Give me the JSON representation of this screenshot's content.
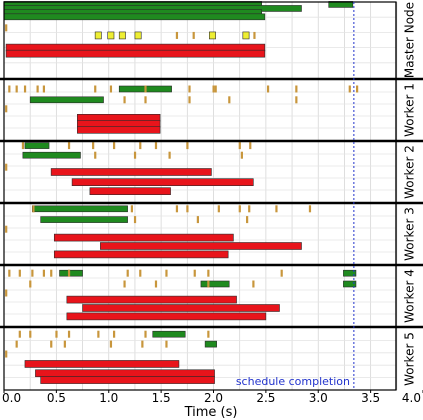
{
  "chart_data": {
    "type": "gantt",
    "title": "",
    "xlabel": "Time (s)",
    "x_ticks": [
      "0.0",
      "0.5",
      "1.0",
      "1.5",
      "2.0",
      "2.5",
      "3.0",
      "3.5",
      "4.0"
    ],
    "xlim": [
      0,
      4.0
    ],
    "grid": true,
    "annotation": {
      "label": "schedule completion",
      "x": 3.34
    },
    "colors": {
      "green": "#1f8a1f",
      "red": "#e8141b",
      "yellow": "#eeee33",
      "tick": "#c8963c",
      "annotation": "#2233cc"
    },
    "rows": [
      {
        "label": "Master Node",
        "green": [
          [
            0.0,
            2.46,
            0.032
          ],
          [
            0.0,
            2.84,
            0.085
          ],
          [
            0.0,
            2.46,
            0.14
          ],
          [
            0.0,
            2.49,
            0.195
          ],
          [
            3.1,
            3.33,
            0.032
          ]
        ],
        "yellow": [
          [
            0.87,
            0.93,
            0.44
          ],
          [
            0.99,
            1.05,
            0.44
          ],
          [
            1.1,
            1.16,
            0.44
          ],
          [
            1.25,
            1.31,
            0.44
          ],
          [
            1.96,
            2.02,
            0.44
          ],
          [
            2.28,
            2.34,
            0.44
          ]
        ],
        "red": [
          [
            0.02,
            2.49,
            0.6
          ],
          [
            0.02,
            2.49,
            0.68
          ]
        ],
        "ticks": [
          [
            0.02,
            0.34
          ],
          [
            1.65,
            0.44
          ],
          [
            1.81,
            0.44
          ],
          [
            2.39,
            0.44
          ]
        ]
      },
      {
        "label": "Worker 1",
        "green": [
          [
            0.25,
            0.95,
            0.33
          ],
          [
            1.1,
            1.6,
            0.15
          ]
        ],
        "red": [
          [
            0.7,
            1.49,
            0.63
          ],
          [
            0.7,
            1.49,
            0.73
          ],
          [
            0.7,
            1.49,
            0.83
          ]
        ],
        "ticks": [
          [
            0.05,
            0.15
          ],
          [
            0.12,
            0.15
          ],
          [
            0.2,
            0.15
          ],
          [
            0.32,
            0.15
          ],
          [
            0.38,
            0.15
          ],
          [
            0.87,
            0.15
          ],
          [
            1.02,
            0.15
          ],
          [
            1.35,
            0.15
          ],
          [
            1.77,
            0.15
          ],
          [
            2.0,
            0.15
          ],
          [
            2.02,
            0.15
          ],
          [
            2.52,
            0.15
          ],
          [
            2.79,
            0.15
          ],
          [
            3.3,
            0.15
          ],
          [
            3.37,
            0.15
          ],
          [
            1.15,
            0.33
          ],
          [
            1.35,
            0.33
          ],
          [
            1.77,
            0.33
          ],
          [
            2.15,
            0.33
          ],
          [
            2.79,
            0.33
          ],
          [
            0.02,
            0.48
          ]
        ]
      },
      {
        "label": "Worker 2",
        "green": [
          [
            0.2,
            0.43,
            0.06
          ],
          [
            0.18,
            0.73,
            0.22
          ]
        ],
        "red": [
          [
            0.45,
            1.98,
            0.5
          ],
          [
            0.65,
            2.38,
            0.67
          ],
          [
            0.82,
            1.59,
            0.82
          ]
        ],
        "ticks": [
          [
            0.18,
            0.06
          ],
          [
            0.62,
            0.06
          ],
          [
            0.85,
            0.06
          ],
          [
            1.05,
            0.06
          ],
          [
            1.3,
            0.06
          ],
          [
            1.45,
            0.06
          ],
          [
            1.75,
            0.06
          ],
          [
            2.25,
            0.06
          ],
          [
            2.35,
            0.06
          ],
          [
            0.87,
            0.22
          ],
          [
            1.25,
            0.22
          ],
          [
            1.58,
            0.22
          ],
          [
            2.27,
            0.22
          ],
          [
            0.02,
            0.42
          ]
        ]
      },
      {
        "label": "Worker 3",
        "green": [
          [
            0.27,
            1.18,
            0.08
          ],
          [
            0.35,
            1.18,
            0.26
          ]
        ],
        "red": [
          [
            0.48,
            2.19,
            0.56
          ],
          [
            0.92,
            2.84,
            0.7
          ],
          [
            0.48,
            2.14,
            0.84
          ]
        ],
        "ticks": [
          [
            0.28,
            0.08
          ],
          [
            1.22,
            0.08
          ],
          [
            1.65,
            0.08
          ],
          [
            1.75,
            0.08
          ],
          [
            2.05,
            0.08
          ],
          [
            2.25,
            0.08
          ],
          [
            2.34,
            0.08
          ],
          [
            2.6,
            0.08
          ],
          [
            2.92,
            0.08
          ],
          [
            1.25,
            0.26
          ],
          [
            1.85,
            0.26
          ],
          [
            2.32,
            0.26
          ],
          [
            0.02,
            0.42
          ]
        ]
      },
      {
        "label": "Worker 4",
        "green": [
          [
            0.53,
            0.75,
            0.12
          ],
          [
            1.88,
            2.15,
            0.3
          ],
          [
            3.24,
            3.36,
            0.12
          ],
          [
            3.24,
            3.36,
            0.3
          ]
        ],
        "red": [
          [
            0.6,
            2.22,
            0.56
          ],
          [
            0.75,
            2.63,
            0.7
          ],
          [
            0.6,
            2.5,
            0.84
          ]
        ],
        "ticks": [
          [
            0.05,
            0.12
          ],
          [
            0.15,
            0.12
          ],
          [
            0.27,
            0.12
          ],
          [
            0.38,
            0.12
          ],
          [
            0.45,
            0.12
          ],
          [
            0.62,
            0.12
          ],
          [
            1.18,
            0.12
          ],
          [
            1.3,
            0.12
          ],
          [
            1.55,
            0.12
          ],
          [
            1.82,
            0.12
          ],
          [
            1.95,
            0.12
          ],
          [
            2.65,
            0.12
          ],
          [
            0.25,
            0.3
          ],
          [
            1.15,
            0.3
          ],
          [
            1.45,
            0.3
          ],
          [
            1.95,
            0.3
          ],
          [
            2.38,
            0.3
          ],
          [
            0.02,
            0.45
          ]
        ]
      },
      {
        "label": "Worker 5",
        "green": [
          [
            1.42,
            1.73,
            0.1
          ],
          [
            1.92,
            2.03,
            0.26
          ]
        ],
        "red": [
          [
            0.2,
            1.67,
            0.58
          ],
          [
            0.3,
            2.01,
            0.73
          ],
          [
            0.35,
            2.01,
            0.84
          ]
        ],
        "ticks": [
          [
            0.15,
            0.1
          ],
          [
            0.25,
            0.1
          ],
          [
            0.5,
            0.1
          ],
          [
            0.62,
            0.1
          ],
          [
            0.9,
            0.1
          ],
          [
            1.05,
            0.1
          ],
          [
            1.35,
            0.1
          ],
          [
            1.95,
            0.1
          ],
          [
            0.12,
            0.26
          ],
          [
            0.45,
            0.26
          ],
          [
            0.58,
            0.26
          ],
          [
            1.02,
            0.26
          ],
          [
            1.32,
            0.26
          ],
          [
            1.55,
            0.26
          ],
          [
            0.02,
            0.42
          ]
        ]
      }
    ]
  }
}
